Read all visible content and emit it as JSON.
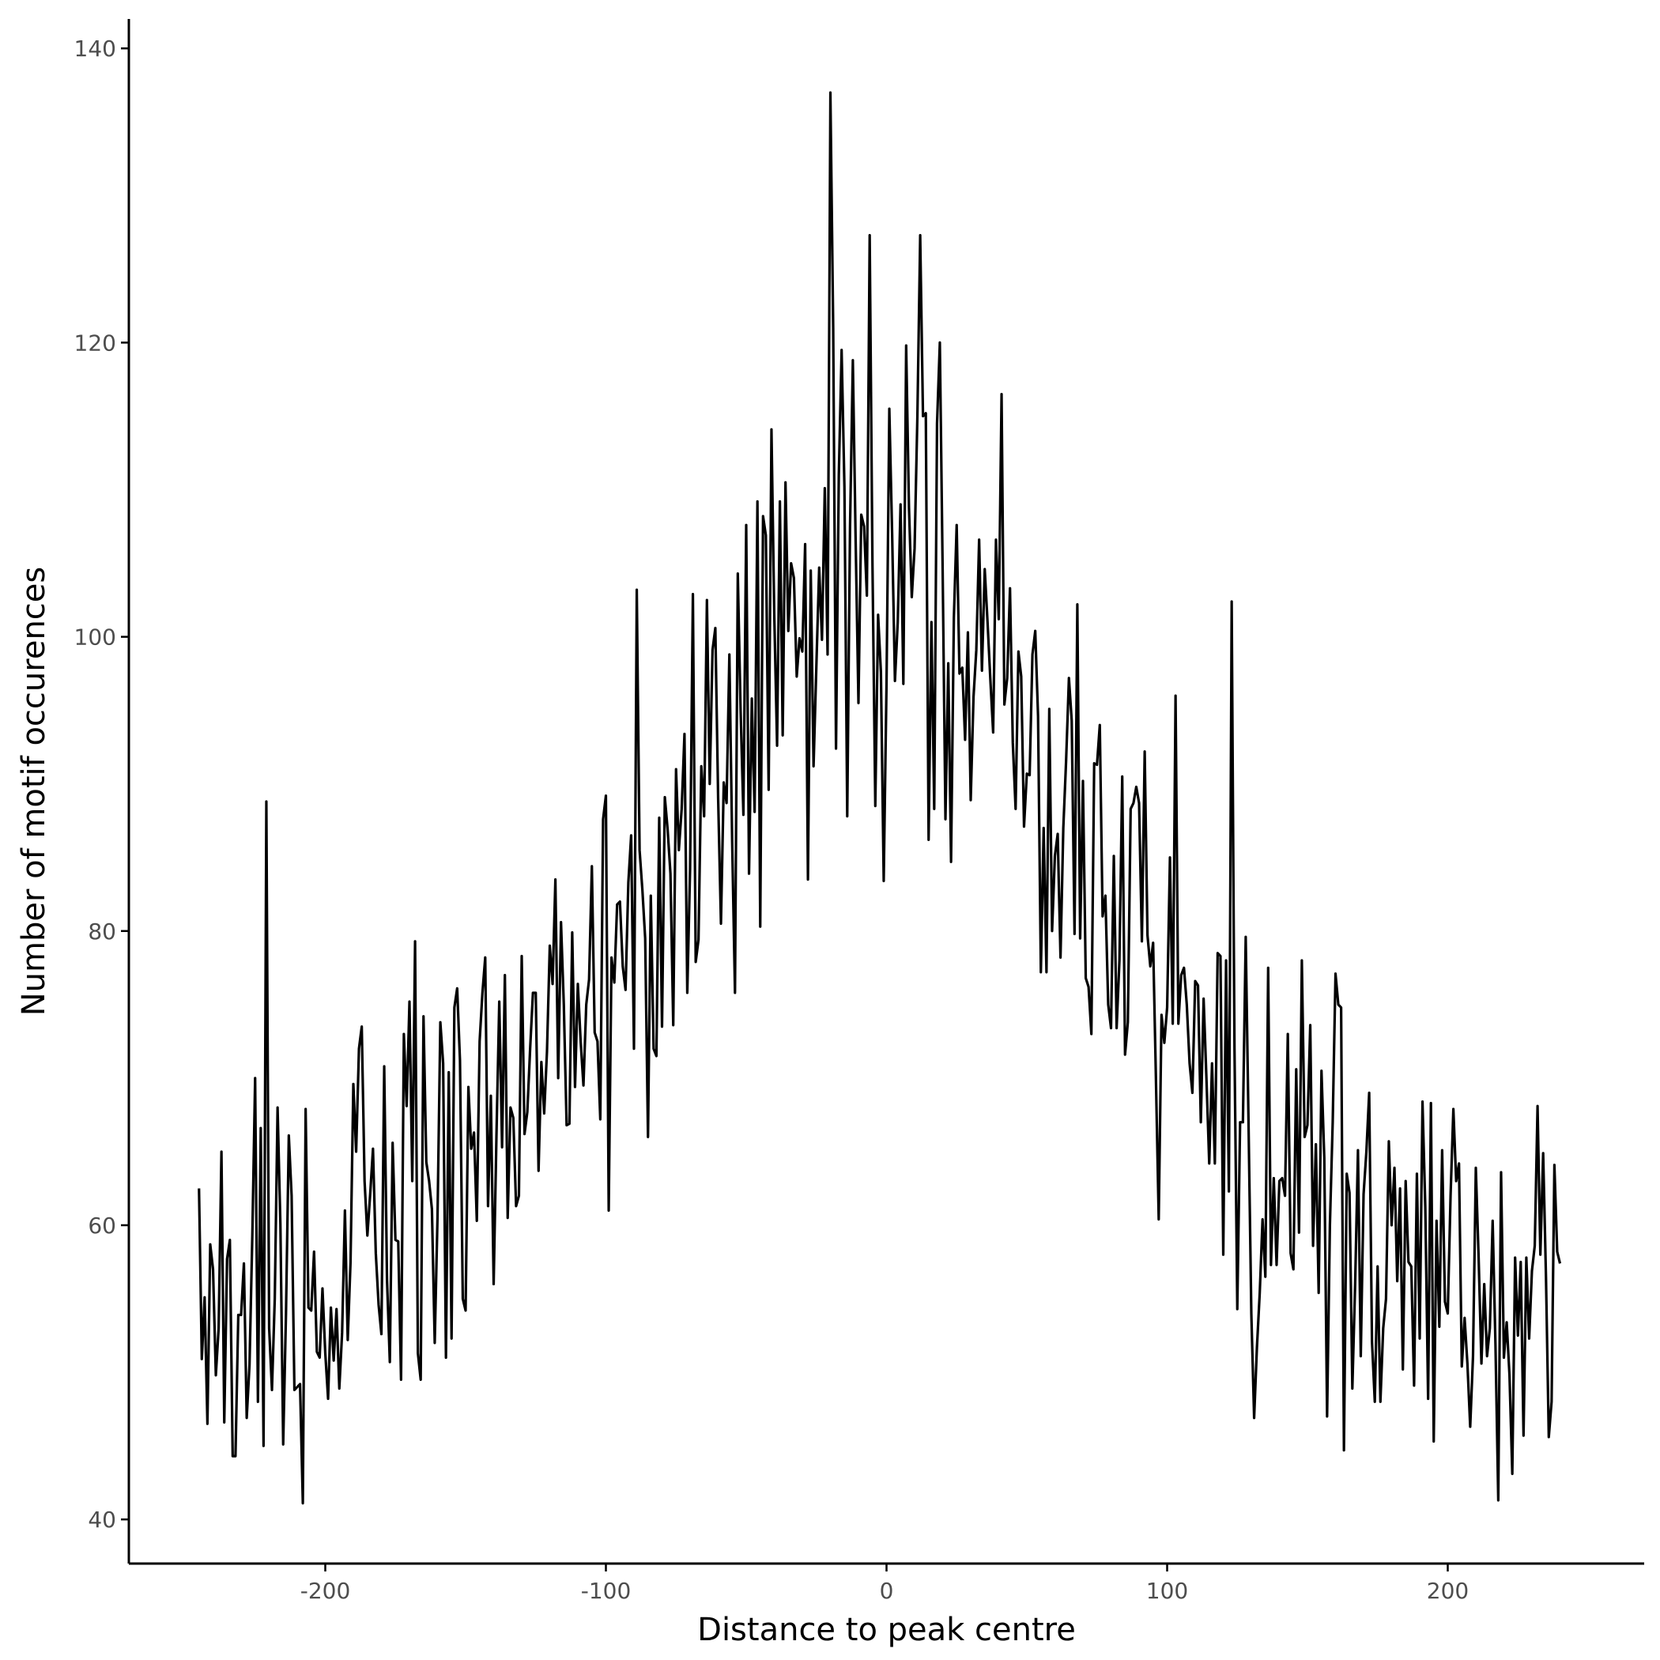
{
  "chart_data": {
    "type": "line",
    "title": "",
    "xlabel": "Distance to peak centre",
    "ylabel": "Number of motif occurences",
    "xlim": [
      -270,
      270
    ],
    "ylim": [
      37,
      142
    ],
    "x_ticks": [
      -200,
      -100,
      0,
      100,
      200
    ],
    "y_ticks": [
      40,
      60,
      80,
      100,
      120,
      140
    ],
    "grid": false,
    "legend": "none",
    "colors": {
      "line": "#000000",
      "axis": "#000000",
      "tick_label": "#4d4d4d"
    },
    "x_start": -245,
    "x_step": 1,
    "series": [
      {
        "values": [
          62.5,
          50.9,
          55.1,
          46.5,
          58.7,
          57.0,
          49.8,
          53.0,
          65.0,
          46.6,
          57.7,
          59.0,
          44.3,
          44.3,
          53.9,
          53.9,
          57.4,
          46.9,
          50.5,
          59.3,
          70.0,
          48.0,
          66.6,
          45.0,
          88.8,
          53.0,
          48.8,
          55.0,
          68.0,
          60.1,
          45.1,
          54.0,
          66.1,
          62.0,
          48.8,
          49.0,
          49.2,
          41.1,
          67.9,
          54.4,
          54.2,
          58.2,
          51.4,
          51.0,
          55.7,
          51.3,
          48.2,
          54.4,
          50.8,
          54.3,
          48.9,
          52.7,
          61.0,
          52.2,
          57.5,
          69.6,
          65.0,
          72.0,
          73.5,
          63.0,
          59.3,
          62.1,
          65.2,
          58.1,
          54.6,
          52.6,
          70.8,
          56.3,
          50.7,
          65.6,
          59.0,
          58.9,
          49.5,
          73.0,
          68.1,
          75.2,
          63.0,
          79.3,
          51.3,
          49.5,
          74.2,
          64.3,
          63.0,
          61.1,
          52.0,
          60.6,
          73.8,
          71.0,
          51.0,
          70.4,
          52.3,
          74.8,
          76.1,
          71.2,
          55.0,
          54.2,
          69.4,
          65.2,
          66.3,
          60.3,
          72.5,
          75.8,
          78.2,
          61.3,
          68.8,
          56.0,
          66.1,
          75.2,
          65.3,
          77.0,
          60.5,
          68.0,
          67.3,
          61.3,
          62.0,
          78.3,
          66.2,
          67.7,
          72.0,
          75.8,
          75.8,
          63.7,
          71.1,
          67.6,
          71.8,
          79.0,
          76.4,
          83.5,
          70.0,
          80.6,
          75.0,
          66.8,
          66.9,
          79.9,
          69.4,
          76.4,
          72.5,
          69.5,
          75.0,
          76.7,
          84.4,
          73.1,
          72.5,
          67.2,
          87.6,
          89.2,
          61.0,
          78.2,
          76.5,
          81.8,
          82.0,
          77.6,
          76.0,
          83.3,
          86.5,
          72.0,
          103.2,
          85.5,
          82.8,
          79.5,
          66.0,
          82.4,
          72.0,
          71.5,
          87.7,
          73.5,
          89.1,
          86.9,
          83.9,
          73.6,
          91.0,
          85.5,
          88.3,
          93.4,
          75.8,
          84.2,
          102.9,
          77.9,
          79.4,
          91.2,
          87.8,
          102.5,
          90.0,
          99.1,
          100.6,
          89.0,
          80.5,
          90.1,
          88.7,
          98.8,
          86.0,
          75.8,
          104.3,
          95.0,
          87.9,
          107.6,
          83.9,
          95.8,
          88.1,
          109.2,
          80.3,
          108.2,
          106.9,
          89.6,
          114.1,
          101.5,
          92.6,
          109.2,
          93.3,
          110.5,
          100.4,
          105.0,
          104.0,
          97.3,
          99.9,
          99.0,
          106.3,
          83.5,
          104.5,
          91.2,
          98.0,
          104.7,
          99.8,
          110.1,
          98.8,
          137.0,
          121.0,
          92.4,
          111.0,
          119.5,
          110.2,
          87.8,
          107.5,
          118.8,
          106.5,
          95.5,
          108.3,
          107.5,
          102.8,
          127.3,
          104.8,
          88.5,
          101.5,
          97.6,
          83.4,
          96.8,
          115.5,
          107.0,
          97.0,
          101.0,
          109.0,
          96.8,
          119.8,
          108.8,
          102.7,
          106.0,
          115.0,
          127.3,
          115.0,
          115.2,
          86.2,
          101.0,
          88.3,
          114.5,
          120.0,
          104.6,
          87.6,
          98.2,
          84.7,
          101.3,
          107.6,
          97.5,
          97.9,
          93.0,
          100.3,
          88.9,
          95.9,
          99.1,
          106.6,
          97.7,
          104.6,
          101.0,
          97.1,
          93.5,
          106.6,
          101.2,
          116.5,
          95.4,
          97.2,
          103.3,
          92.8,
          88.3,
          99.0,
          97.3,
          87.1,
          90.7,
          90.6,
          98.8,
          100.4,
          94.6,
          77.2,
          87.0,
          77.2,
          95.1,
          80.0,
          85.1,
          86.6,
          78.2,
          87.0,
          91.6,
          97.2,
          94.3,
          79.8,
          102.2,
          79.5,
          90.2,
          76.8,
          76.2,
          73.0,
          91.4,
          91.3,
          94.0,
          81.0,
          82.4,
          75.0,
          73.4,
          85.1,
          73.4,
          78.0,
          90.5,
          71.6,
          73.8,
          88.3,
          88.7,
          89.8,
          88.7,
          79.3,
          92.2,
          79.7,
          77.6,
          79.2,
          70.0,
          60.4,
          74.3,
          72.4,
          74.8,
          85.0,
          73.7,
          96.0,
          73.7,
          77.0,
          77.5,
          75.0,
          71.0,
          69.0,
          76.6,
          76.3,
          67.0,
          75.4,
          70.0,
          64.2,
          71.0,
          64.2,
          78.5,
          78.3,
          58.0,
          78.0,
          62.3,
          102.4,
          72.0,
          54.3,
          67.0,
          67.0,
          79.6,
          67.0,
          54.0,
          46.9,
          51.7,
          55.4,
          60.4,
          56.5,
          77.5,
          57.3,
          63.2,
          57.3,
          63.0,
          63.2,
          62.0,
          73.0,
          58.1,
          57.0,
          70.6,
          59.5,
          78.0,
          66.0,
          66.8,
          73.6,
          58.6,
          65.5,
          55.4,
          70.5,
          64.6,
          47.0,
          60.0,
          67.0,
          77.1,
          75.0,
          74.8,
          44.7,
          63.5,
          62.2,
          48.9,
          56.0,
          65.1,
          51.1,
          62.1,
          65.0,
          69.0,
          52.1,
          48.0,
          57.2,
          48.0,
          53.0,
          55.0,
          65.7,
          60.0,
          63.9,
          56.2,
          62.5,
          50.2,
          63.0,
          57.5,
          57.2,
          49.1,
          63.5,
          52.3,
          68.4,
          61.2,
          48.2,
          68.3,
          45.3,
          60.3,
          53.1,
          65.1,
          54.8,
          54.0,
          62.0,
          67.9,
          63.0,
          64.2,
          50.4,
          53.7,
          50.6,
          46.3,
          51.1,
          63.9,
          57.8,
          50.6,
          56.0,
          51.1,
          53.0,
          60.3,
          51.9,
          41.3,
          63.6,
          51.0,
          53.4,
          49.8,
          43.1,
          57.8,
          52.5,
          57.5,
          45.7,
          57.8,
          52.3,
          56.9,
          58.6,
          68.1,
          58.0,
          64.9,
          56.5,
          45.6,
          48.0,
          64.1,
          58.2,
          57.4
        ]
      }
    ]
  }
}
